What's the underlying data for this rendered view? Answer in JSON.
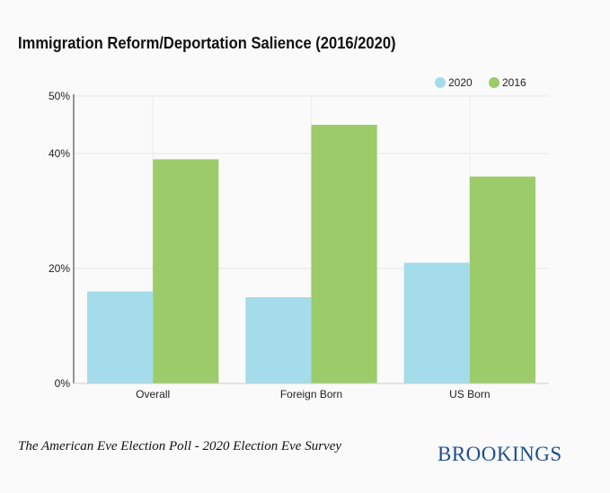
{
  "title": "Immigration Reform/Deportation Salience (2016/2020)",
  "source": "The American Eve Election Poll - 2020 Election Eve Survey",
  "brand": "BROOKINGS",
  "chart_data": {
    "type": "bar",
    "categories": [
      "Overall",
      "Foreign Born",
      "US Born"
    ],
    "series": [
      {
        "name": "2020",
        "color": "#a5dceb",
        "values": [
          16,
          15,
          21
        ]
      },
      {
        "name": "2016",
        "color": "#9ccb69",
        "values": [
          39,
          45,
          36
        ]
      }
    ],
    "ylim": [
      0,
      50
    ],
    "yticks": [
      {
        "value": 0,
        "label": "0%"
      },
      {
        "value": 20,
        "label": "20%"
      },
      {
        "value": 40,
        "label": "40%"
      },
      {
        "value": 50,
        "label": "50%"
      }
    ],
    "legend": "top-right",
    "grid": true
  }
}
